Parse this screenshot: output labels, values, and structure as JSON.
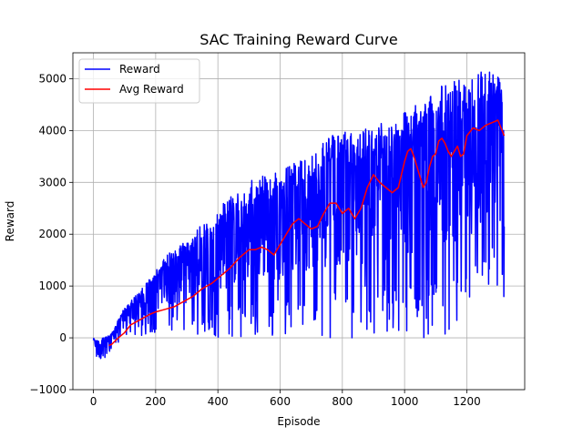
{
  "chart_data": {
    "type": "line",
    "title": "SAC Training Reward Curve",
    "xlabel": "Episode",
    "ylabel": "Reward",
    "xlim": [
      -66,
      1386
    ],
    "ylim": [
      -1000,
      5500
    ],
    "xticks": [
      0,
      200,
      400,
      600,
      800,
      1000,
      1200
    ],
    "yticks": [
      -1000,
      0,
      1000,
      2000,
      3000,
      4000,
      5000
    ],
    "xtick_labels": [
      "0",
      "200",
      "400",
      "600",
      "800",
      "1000",
      "1200"
    ],
    "ytick_labels": [
      "−1000",
      "0",
      "1000",
      "2000",
      "3000",
      "4000",
      "5000"
    ],
    "grid": true,
    "legend_position": "top-left",
    "series": [
      {
        "name": "Reward",
        "color": "#0000ff",
        "kind": "noisy",
        "episodes": [
          0,
          1320
        ],
        "envelope": {
          "x": [
            0,
            20,
            40,
            60,
            100,
            150,
            200,
            250,
            300,
            350,
            400,
            450,
            500,
            550,
            600,
            650,
            700,
            750,
            800,
            850,
            900,
            950,
            1000,
            1050,
            1100,
            1150,
            1200,
            1250,
            1300,
            1320
          ],
          "high": [
            0,
            -50,
            50,
            100,
            600,
            900,
            1300,
            1700,
            1900,
            2200,
            2500,
            2800,
            3000,
            3200,
            3200,
            3400,
            3600,
            3900,
            4000,
            3900,
            4200,
            4200,
            4400,
            4600,
            4800,
            5000,
            5100,
            5200,
            5200,
            5100
          ],
          "low": [
            -100,
            -700,
            -400,
            -200,
            0,
            0,
            100,
            100,
            0,
            0,
            0,
            0,
            0,
            0,
            0,
            100,
            100,
            0,
            0,
            0,
            0,
            0,
            0,
            0,
            0,
            100,
            300,
            400,
            900,
            150
          ]
        }
      },
      {
        "name": "Avg Reward",
        "color": "#ff0000",
        "kind": "smooth",
        "x": [
          50,
          60,
          80,
          100,
          120,
          150,
          180,
          200,
          230,
          260,
          290,
          320,
          350,
          380,
          410,
          440,
          470,
          500,
          520,
          540,
          560,
          580,
          600,
          620,
          640,
          660,
          680,
          700,
          720,
          740,
          760,
          780,
          800,
          820,
          840,
          860,
          880,
          900,
          920,
          940,
          960,
          980,
          1000,
          1010,
          1020,
          1030,
          1040,
          1050,
          1060,
          1070,
          1080,
          1090,
          1100,
          1110,
          1120,
          1130,
          1140,
          1150,
          1160,
          1170,
          1180,
          1190,
          1200,
          1220,
          1240,
          1260,
          1280,
          1300,
          1320
        ],
        "y": [
          -150,
          -120,
          0,
          100,
          250,
          350,
          450,
          500,
          550,
          600,
          700,
          800,
          950,
          1050,
          1200,
          1350,
          1550,
          1700,
          1700,
          1750,
          1700,
          1600,
          1800,
          2000,
          2200,
          2300,
          2200,
          2100,
          2150,
          2400,
          2600,
          2600,
          2400,
          2500,
          2300,
          2500,
          2900,
          3150,
          3000,
          2900,
          2800,
          2900,
          3400,
          3600,
          3650,
          3500,
          3300,
          3100,
          2900,
          3000,
          3300,
          3500,
          3550,
          3800,
          3850,
          3750,
          3600,
          3500,
          3600,
          3700,
          3500,
          3550,
          3900,
          4050,
          4000,
          4100,
          4150,
          4200,
          3900
        ]
      }
    ]
  }
}
